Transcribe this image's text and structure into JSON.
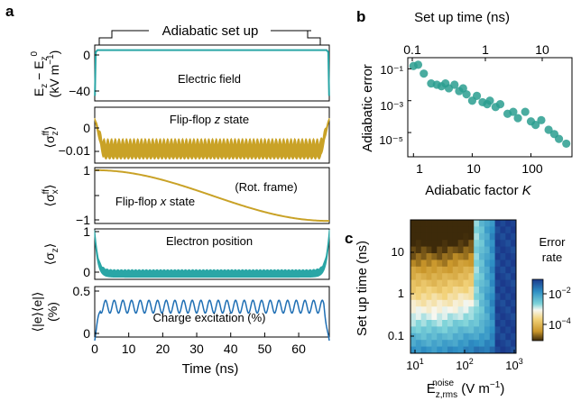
{
  "panel_labels": [
    "a",
    "b",
    "c"
  ],
  "panel_a": {
    "title": "Adiabatic set up",
    "xlabel": "Time (ns)",
    "xticks": [
      "0",
      "10",
      "20",
      "30",
      "40",
      "50",
      "60"
    ],
    "subplots": [
      {
        "ylabel_lines": [
          "E_z − E_z^0",
          "(kV m⁻¹)"
        ],
        "ylabel_text": "E_z − E_z^0 (kV m⁻¹)",
        "label": "Electric field",
        "yticks": [
          "0",
          "−40"
        ]
      },
      {
        "ylabel_text": "⟨σ_z^ff⟩",
        "label": "Flip-flop z state",
        "yticks": [
          "0",
          "−0.01"
        ]
      },
      {
        "ylabel_text": "⟨σ_x^ff⟩",
        "label": "Flip-flop x state",
        "label2": "(Rot. frame)",
        "yticks": [
          "1",
          "0",
          "−1"
        ]
      },
      {
        "ylabel_text": "⟨σ_z⟩",
        "label": "Electron position",
        "yticks": [
          "1",
          "0"
        ]
      },
      {
        "ylabel_text": "⟨|e⟩⟨e|⟩ (%)",
        "label": "Charge excitation (%)",
        "yticks": [
          "0.5",
          "0"
        ]
      }
    ]
  },
  "panel_b": {
    "xlabel": "Adiabatic factor K",
    "ylabel": "Adiabatic error",
    "top_label": "Set up time (ns)",
    "xticks": [
      "1",
      "10",
      "100"
    ],
    "top_ticks": [
      "0.1",
      "1",
      "10"
    ],
    "yticks": [
      "10⁻¹",
      "10⁻³",
      "10⁻⁵"
    ]
  },
  "panel_c": {
    "xlabel": "E_z,rms^noise (V m⁻¹)",
    "ylabel": "Set up time (ns)",
    "colorbar_title": [
      "Error",
      "rate"
    ],
    "colorbar_ticks": [
      "10⁻²",
      "10⁻⁴"
    ],
    "xticks": [
      "10¹",
      "10²",
      "10³"
    ],
    "yticks": [
      "10",
      "1",
      "0.1"
    ]
  },
  "colors": {
    "gold": "#c9a227",
    "teal": "#2aa6a6",
    "blue": "#1f6fb4",
    "scatter": "#2a9d8f"
  },
  "chart_data": [
    {
      "type": "line",
      "title": "Electric field",
      "x": [
        0,
        1,
        3,
        10,
        30,
        60,
        66,
        68,
        69
      ],
      "series": [
        {
          "values": [
            -45,
            0,
            0,
            0,
            0,
            0,
            0,
            0,
            -45
          ]
        }
      ],
      "xlim": [
        0,
        69
      ],
      "ylim": [
        -50,
        5
      ]
    },
    {
      "type": "line",
      "title": "Flip-flop z state",
      "x_range": [
        0,
        69
      ],
      "envelope_min": -0.012,
      "oscillation_amplitude": 0.003,
      "ylim": [
        -0.014,
        0.004
      ]
    },
    {
      "type": "line",
      "title": "Flip-flop x state",
      "x": [
        0,
        10,
        20,
        30,
        40,
        50,
        60,
        69
      ],
      "series": [
        {
          "values": [
            1,
            0.95,
            0.8,
            0.5,
            0.1,
            -0.4,
            -0.8,
            -1
          ]
        }
      ],
      "ylim": [
        -1.1,
        1.1
      ]
    },
    {
      "type": "line",
      "title": "Electron position",
      "x_range": [
        0,
        69
      ],
      "baseline": 0.08,
      "edge_value": 1,
      "ylim": [
        -0.05,
        1.1
      ]
    },
    {
      "type": "line",
      "title": "Charge excitation (%)",
      "x_range": [
        0,
        69
      ],
      "plateau": 0.35,
      "oscillation_amplitude": 0.08,
      "ylim": [
        0,
        0.55
      ]
    },
    {
      "type": "scatter",
      "xlabel": "Adiabatic factor K",
      "ylabel": "Adiabatic error",
      "x_scale": "log",
      "y_scale": "log",
      "xlim": [
        0.8,
        500
      ],
      "ylim": [
        3e-07,
        0.5
      ],
      "x": [
        1,
        1.2,
        1.5,
        2,
        2.5,
        3,
        3.5,
        4,
        5,
        6,
        7,
        8,
        10,
        12,
        15,
        18,
        20,
        25,
        30,
        40,
        50,
        60,
        80,
        100,
        120,
        150,
        200,
        250,
        300,
        400
      ],
      "y": [
        0.15,
        0.18,
        0.05,
        0.012,
        0.01,
        0.008,
        0.012,
        0.006,
        0.01,
        0.004,
        0.006,
        0.0025,
        0.001,
        0.002,
        0.0008,
        0.0006,
        0.001,
        0.0004,
        0.0006,
        0.00015,
        0.0002,
        8e-05,
        0.0002,
        5e-05,
        3e-05,
        6e-05,
        1.5e-05,
        8e-06,
        4e-06,
        2e-06
      ]
    },
    {
      "type": "heatmap",
      "xlabel": "E_z,rms^noise (V m⁻¹)",
      "ylabel": "Set up time (ns)",
      "x_scale": "log",
      "y_scale": "log",
      "xlim": [
        10,
        1500
      ],
      "ylim": [
        0.08,
        50
      ],
      "colorbar_range": [
        1e-05,
        0.1
      ],
      "rows": 20,
      "cols": 20
    }
  ]
}
